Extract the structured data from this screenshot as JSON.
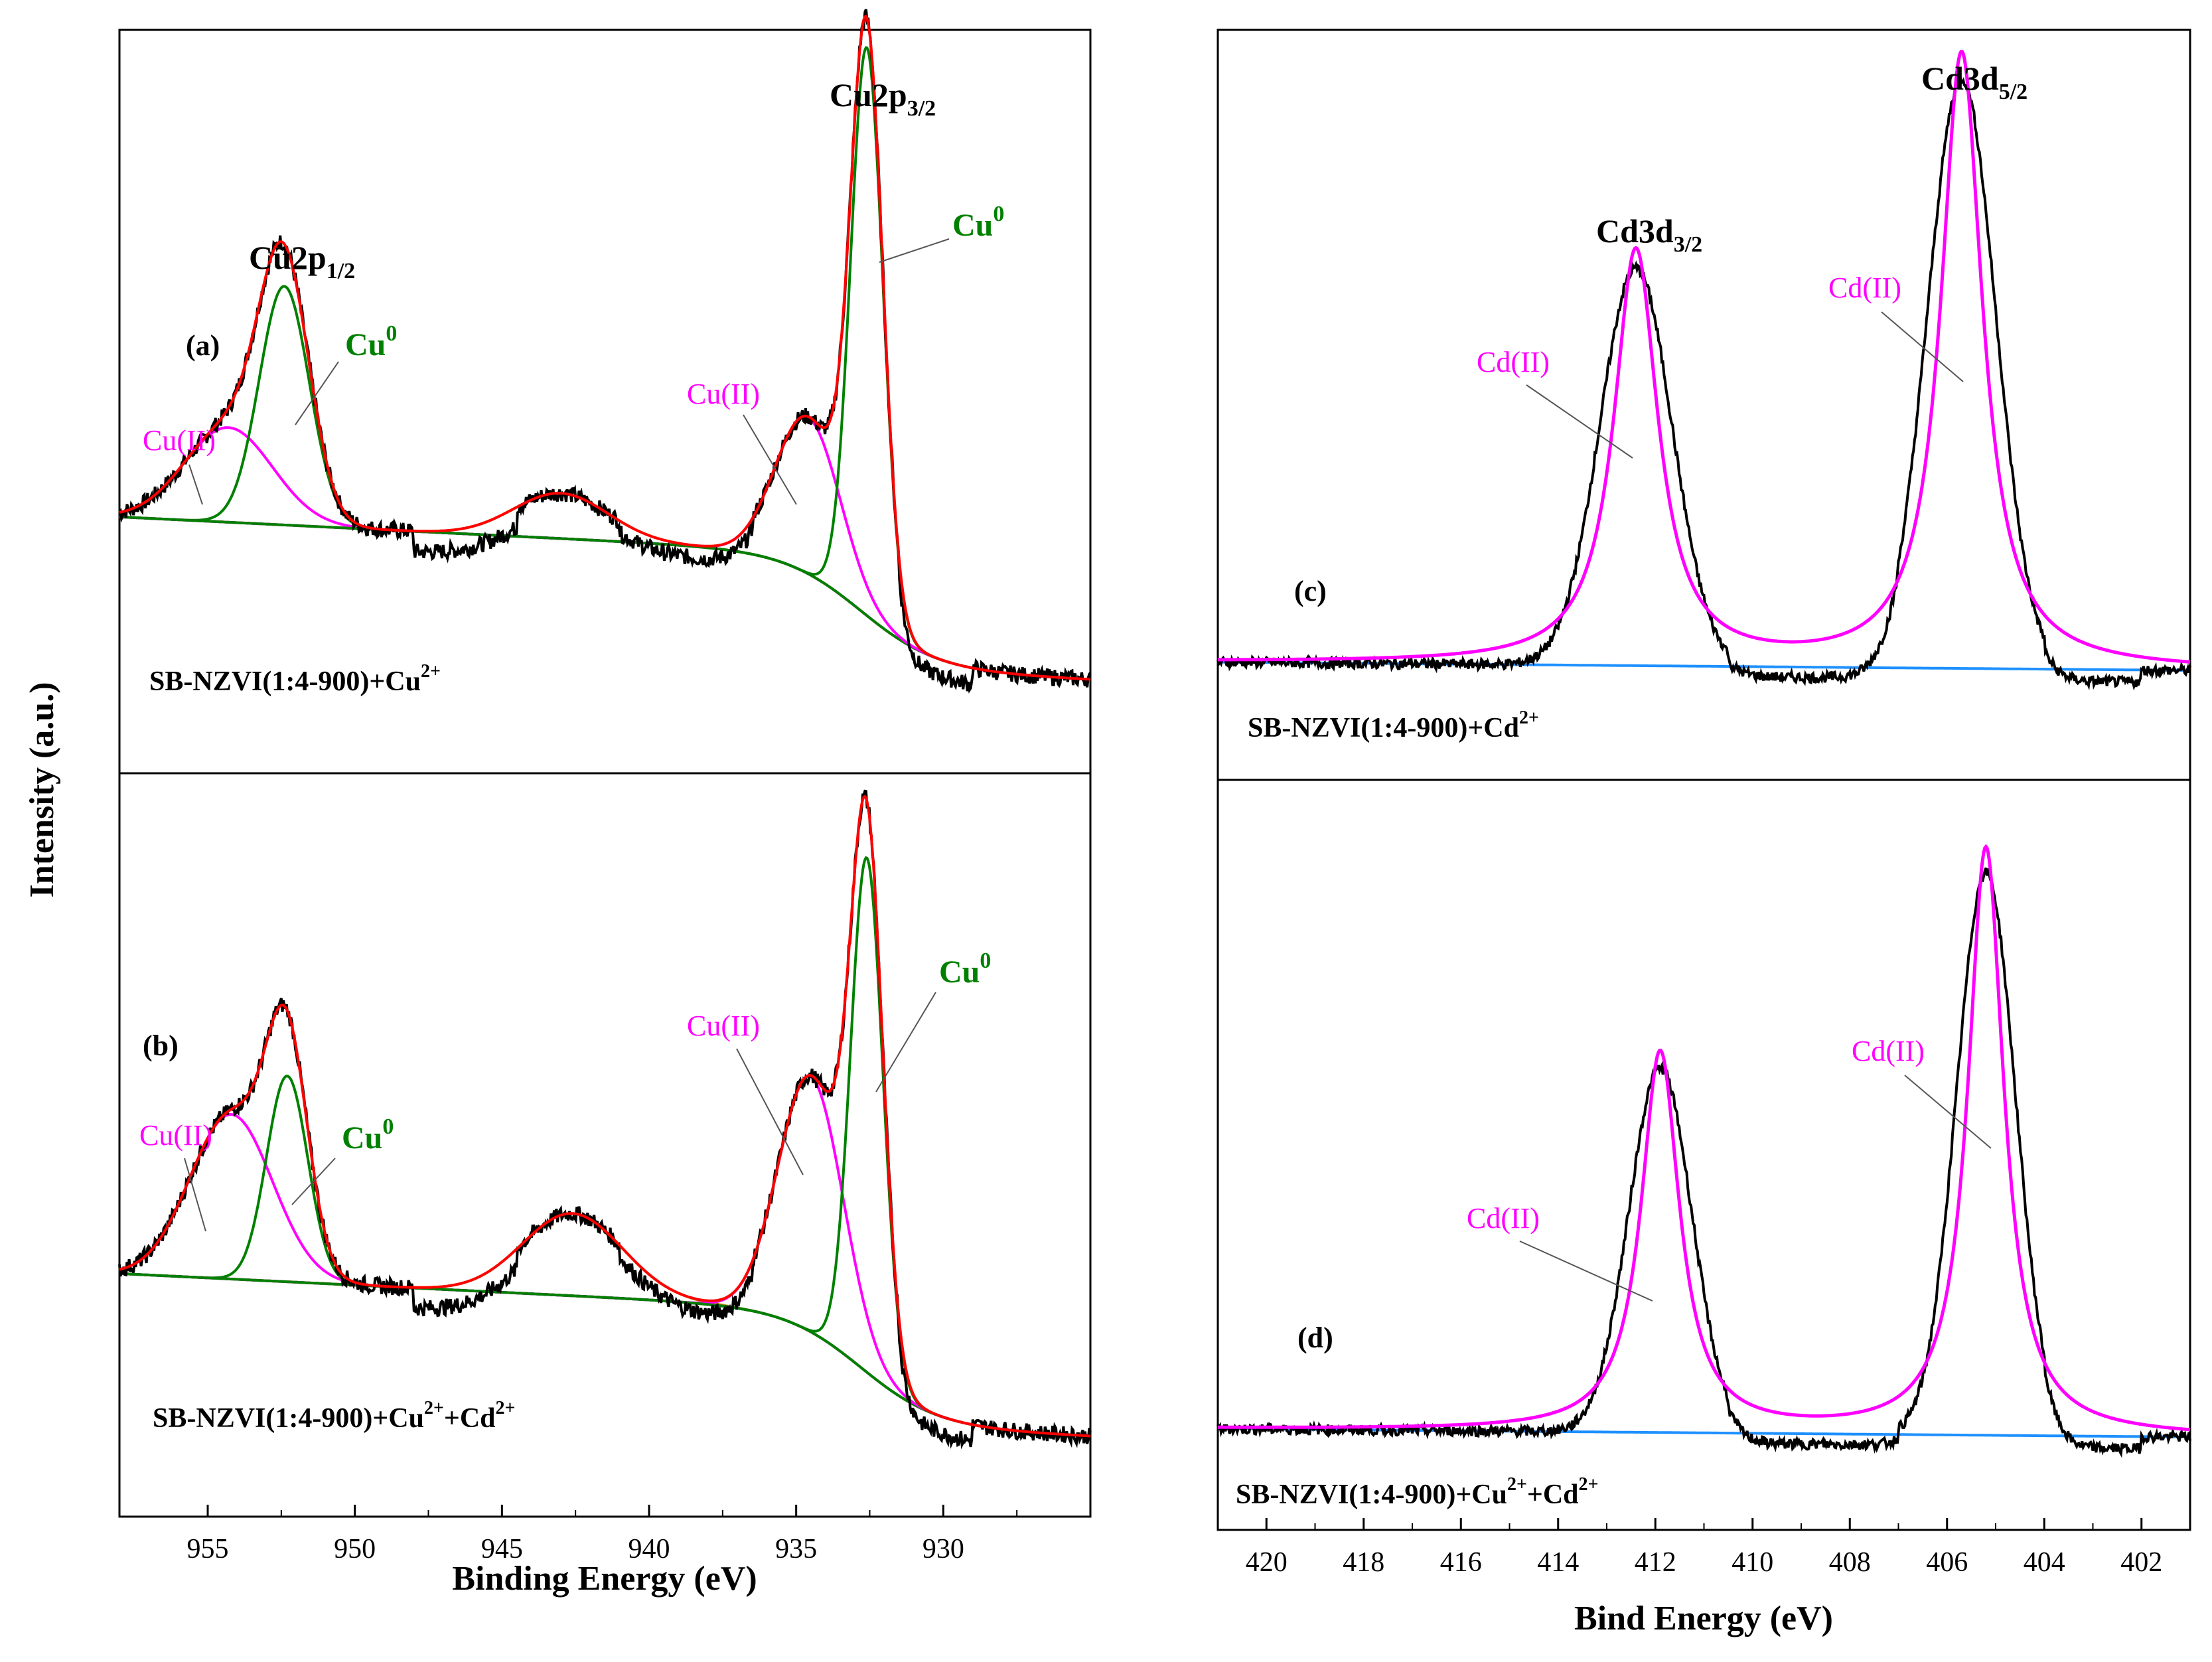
{
  "figure": {
    "y_label": "Intensity (a.u.)"
  },
  "colors": {
    "raw": "#000000",
    "envelope": "#ff0000",
    "cu0": "#008000",
    "cu_ii": "#ff00ff",
    "satellite": "#b8860b",
    "background_line": "#1e90ff",
    "cd": "#ff00ff",
    "green_label": "#008000",
    "magenta_label": "#ff00ff"
  },
  "chart_data": [
    {
      "id": "left",
      "type": "line",
      "xlabel": "Binding Energy (eV)",
      "xlim": [
        958,
        925
      ],
      "xticks": [
        955,
        950,
        945,
        940,
        935,
        930
      ],
      "ylim": [
        0,
        2.2
      ],
      "panels": [
        {
          "tag": "(a)",
          "sample": "SB-NZVI(1:4-900)+Cu",
          "sample_sup": "2+",
          "peaks": [
            {
              "name": "Cu(II)",
              "series": "cu_ii",
              "center": 954.3,
              "amp": 0.23,
              "width": 1.5
            },
            {
              "name": "Cu0",
              "series": "cu0",
              "center": 952.4,
              "amp": 0.58,
              "width": 0.85
            },
            {
              "name": "Cu(II)",
              "series": "cu_ii",
              "center": 934.6,
              "amp": 0.38,
              "width": 1.1
            },
            {
              "name": "Cu0",
              "series": "cu0",
              "center": 932.6,
              "amp": 1.38,
              "width": 0.55
            }
          ],
          "satellite": {
            "center": 943.0,
            "amp": 0.11,
            "width": 1.6
          },
          "labels": {
            "peak_left": "Cu2p",
            "peak_left_sub": "1/2",
            "peak_right": "Cu2p",
            "peak_right_sub": "3/2",
            "cu0_left": "Cu",
            "cu0_left_sup": "0",
            "cu0_right": "Cu",
            "cu0_right_sup": "0",
            "cuii_left": "Cu(II)",
            "cuii_right": "Cu(II)"
          }
        },
        {
          "tag": "(b)",
          "sample": "SB-NZVI(1:4-900)+Cu",
          "sample_sup": "2+",
          "sample_tail": "+Cd",
          "sample_tail_sup": "2+",
          "peaks": [
            {
              "name": "Cu(II)",
              "series": "cu_ii",
              "center": 954.2,
              "amp": 0.4,
              "width": 1.4
            },
            {
              "name": "Cu0",
              "series": "cu0",
              "center": 952.3,
              "amp": 0.5,
              "width": 0.7
            },
            {
              "name": "Cu(II)",
              "series": "cu_ii",
              "center": 934.5,
              "amp": 0.62,
              "width": 1.1
            },
            {
              "name": "Cu0",
              "series": "cu0",
              "center": 932.6,
              "amp": 1.25,
              "width": 0.55
            }
          ],
          "satellite": {
            "center": 942.6,
            "amp": 0.2,
            "width": 1.7
          },
          "labels": {
            "cu0_left": "Cu",
            "cu0_left_sup": "0",
            "cu0_right": "Cu",
            "cu0_right_sup": "0",
            "cuii_left": "Cu(II)",
            "cuii_right": "Cu(II)"
          }
        }
      ]
    },
    {
      "id": "right",
      "type": "line",
      "xlabel": "Bind Energy (eV)",
      "xlim": [
        421,
        401
      ],
      "xticks": [
        420,
        418,
        416,
        414,
        412,
        410,
        408,
        406,
        404,
        402
      ],
      "ylim": [
        0,
        2.2
      ],
      "panels": [
        {
          "tag": "(c)",
          "sample": "SB-NZVI(1:4-900)+Cd",
          "sample_sup": "2+",
          "peaks": [
            {
              "name": "Cd(II)",
              "series": "cd",
              "center": 412.4,
              "amp": 1.2,
              "width": 0.55
            },
            {
              "name": "Cd(II)",
              "series": "cd",
              "center": 405.7,
              "amp": 1.78,
              "width": 0.52
            }
          ],
          "labels": {
            "peak_left": "Cd3d",
            "peak_left_sub": "3/2",
            "peak_right": "Cd3d",
            "peak_right_sub": "5/2",
            "cd_left": "Cd(II)",
            "cd_right": "Cd(II)"
          }
        },
        {
          "tag": "(d)",
          "sample": "SB-NZVI(1:4-900)+Cu",
          "sample_sup": "2+",
          "sample_tail": "+Cd",
          "sample_tail_sup": "2+",
          "peaks": [
            {
              "name": "Cd(II)",
              "series": "cd",
              "center": 411.9,
              "amp": 1.1,
              "width": 0.48
            },
            {
              "name": "Cd(II)",
              "series": "cd",
              "center": 405.2,
              "amp": 1.7,
              "width": 0.45
            }
          ],
          "labels": {
            "cd_left": "Cd(II)",
            "cd_right": "Cd(II)"
          }
        }
      ]
    }
  ]
}
